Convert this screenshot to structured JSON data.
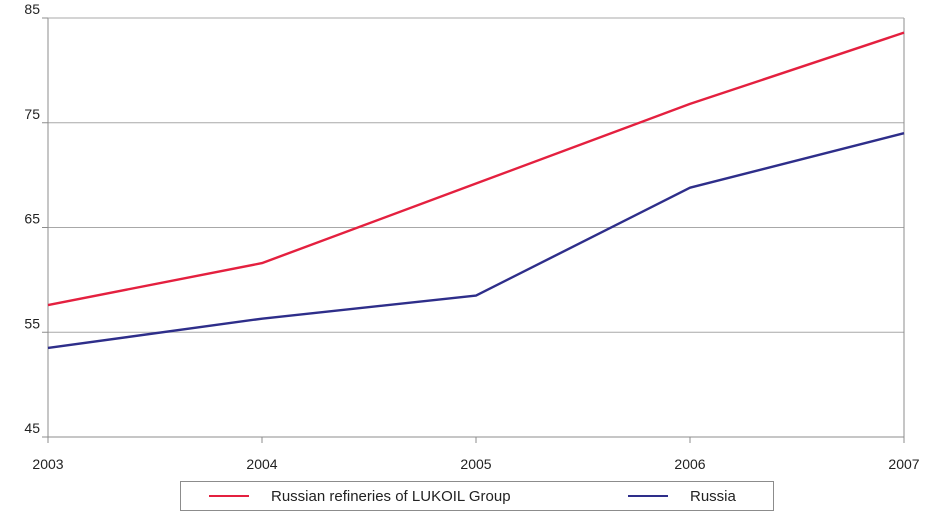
{
  "chart_data": {
    "type": "line",
    "title": "",
    "xlabel": "",
    "ylabel": "",
    "x": [
      "2003",
      "2004",
      "2005",
      "2006",
      "2007"
    ],
    "ylim": [
      45,
      85
    ],
    "yticks": [
      "45",
      "55",
      "65",
      "75",
      "85"
    ],
    "grid": true,
    "legend_position": "bottom",
    "series": [
      {
        "name": "Russian refineries of LUKOIL Group",
        "color": "#e4203f",
        "values": [
          57.6,
          61.6,
          69.2,
          76.8,
          83.6
        ]
      },
      {
        "name": "Russia",
        "color": "#2e2e8a",
        "values": [
          53.5,
          56.3,
          58.5,
          68.8,
          74.0
        ]
      }
    ]
  }
}
